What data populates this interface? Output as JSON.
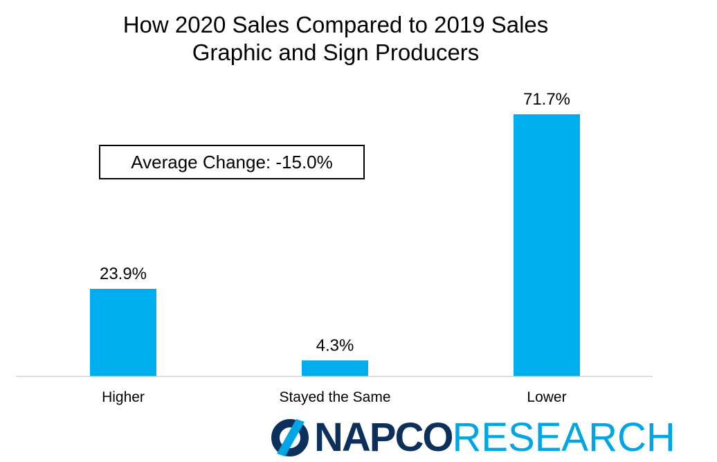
{
  "chart_data": {
    "type": "bar",
    "title": "How 2020 Sales Compared to 2019 Sales",
    "subtitle": "Graphic and Sign Producers",
    "categories": [
      "Higher",
      "Stayed the Same",
      "Lower"
    ],
    "values": [
      23.9,
      4.3,
      71.7
    ],
    "value_labels": [
      "23.9%",
      "4.3%",
      "71.7%"
    ],
    "unit": "%",
    "xlabel": "",
    "ylabel": "",
    "ylim": [
      0,
      80
    ],
    "grid": false,
    "bar_color": "#00aeef",
    "annotation": "Average Change: -15.0%"
  },
  "brand": {
    "logo_bold": "NAPCO",
    "logo_light": "RESEARCH",
    "logo_colors": {
      "dark": "#0c2f5c",
      "accent": "#00a5e5"
    }
  }
}
